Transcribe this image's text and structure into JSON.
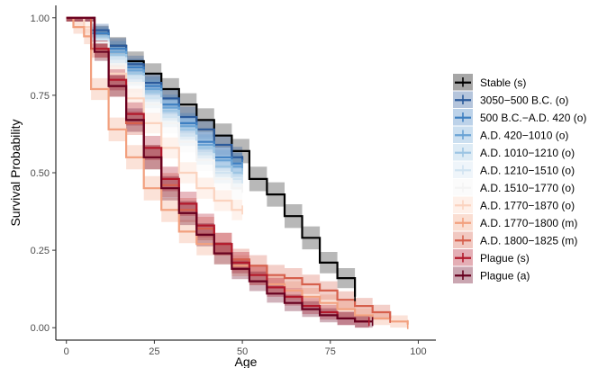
{
  "chart_data": {
    "type": "line",
    "subtype": "kaplan-meier-step",
    "title": "",
    "xlabel": "Age",
    "ylabel": "Survival Probability",
    "xlim": [
      -3,
      105
    ],
    "ylim": [
      -0.04,
      1.04
    ],
    "xticks": [
      0,
      25,
      50,
      75,
      100
    ],
    "yticks": [
      0,
      0.25,
      0.5,
      0.75,
      1
    ],
    "ytick_labels": [
      "0.00",
      "0.25",
      "0.50",
      "0.75",
      "1.00"
    ],
    "confidence_bands": true,
    "grid": false,
    "legend_position": "right",
    "series": [
      {
        "name": "Stable (s)",
        "color": "#000000",
        "x": [
          0,
          8,
          12,
          17,
          22,
          27,
          32,
          37,
          42,
          47,
          52,
          57,
          62,
          67,
          72,
          77,
          82
        ],
        "y": [
          1.0,
          0.95,
          0.91,
          0.86,
          0.82,
          0.77,
          0.72,
          0.67,
          0.62,
          0.57,
          0.48,
          0.43,
          0.36,
          0.29,
          0.21,
          0.16,
          0.1
        ],
        "end": 82
      },
      {
        "name": "3050−500 B.C. (o)",
        "color": "#2b5a9b",
        "x": [
          0,
          7,
          12,
          17,
          22,
          27,
          32,
          37,
          42,
          47,
          50
        ],
        "y": [
          1.0,
          0.96,
          0.91,
          0.85,
          0.79,
          0.74,
          0.68,
          0.64,
          0.59,
          0.55,
          0.54
        ],
        "end": 50
      },
      {
        "name": "500 B.C.−A.D. 420 (o)",
        "color": "#3e7fc1",
        "x": [
          0,
          7,
          12,
          17,
          22,
          27,
          32,
          37,
          42,
          47
        ],
        "y": [
          1.0,
          0.95,
          0.9,
          0.84,
          0.78,
          0.72,
          0.66,
          0.6,
          0.55,
          0.53
        ],
        "end": 50
      },
      {
        "name": "A.D. 420−1010 (o)",
        "color": "#6aa3d5",
        "x": [
          0,
          7,
          12,
          17,
          22,
          27,
          32,
          37,
          42,
          47
        ],
        "y": [
          1.0,
          0.94,
          0.89,
          0.83,
          0.77,
          0.71,
          0.65,
          0.59,
          0.54,
          0.52
        ],
        "end": 50
      },
      {
        "name": "A.D. 1010−1210 (o)",
        "color": "#9dc5e3",
        "x": [
          0,
          7,
          12,
          17,
          22,
          27,
          32,
          37,
          42,
          47
        ],
        "y": [
          1.0,
          0.94,
          0.88,
          0.82,
          0.76,
          0.7,
          0.64,
          0.58,
          0.52,
          0.5
        ],
        "end": 50
      },
      {
        "name": "A.D. 1210−1510 (o)",
        "color": "#d0e3f1",
        "x": [
          0,
          7,
          12,
          17,
          22,
          27,
          32,
          37,
          42,
          47
        ],
        "y": [
          1.0,
          0.93,
          0.87,
          0.81,
          0.74,
          0.68,
          0.62,
          0.56,
          0.5,
          0.48
        ],
        "end": 50
      },
      {
        "name": "A.D. 1510−1770 (o)",
        "color": "#f4f4f4",
        "x": [
          0,
          7,
          12,
          17,
          22,
          27,
          32,
          37,
          42,
          47
        ],
        "y": [
          1.0,
          0.92,
          0.85,
          0.79,
          0.72,
          0.66,
          0.6,
          0.54,
          0.48,
          0.45
        ],
        "end": 50
      },
      {
        "name": "A.D. 1770−1870 (o)",
        "color": "#fbd3bf",
        "x": [
          0,
          5,
          7,
          12,
          17,
          22,
          27,
          32,
          37,
          42,
          47
        ],
        "y": [
          1.0,
          0.97,
          0.89,
          0.82,
          0.74,
          0.66,
          0.58,
          0.5,
          0.45,
          0.41,
          0.38
        ],
        "end": 50
      },
      {
        "name": "A.D. 1770−1800 (m)",
        "color": "#f2a07e",
        "x": [
          0,
          2,
          5,
          7,
          12,
          17,
          22,
          27,
          32,
          37,
          42,
          47,
          52,
          57,
          62,
          67,
          72,
          77,
          82,
          87,
          92,
          97
        ],
        "y": [
          1.0,
          0.97,
          0.94,
          0.77,
          0.64,
          0.55,
          0.45,
          0.38,
          0.31,
          0.27,
          0.24,
          0.2,
          0.17,
          0.14,
          0.12,
          0.1,
          0.08,
          0.06,
          0.04,
          0.03,
          0.02,
          0.01
        ],
        "end": 97
      },
      {
        "name": "A.D. 1800−1825 (m)",
        "color": "#d6604d",
        "x": [
          0,
          7,
          12,
          17,
          22,
          27,
          32,
          37,
          42,
          47,
          52,
          57,
          62,
          67,
          72,
          77,
          82,
          87,
          92
        ],
        "y": [
          1.0,
          0.9,
          0.78,
          0.66,
          0.55,
          0.46,
          0.38,
          0.32,
          0.27,
          0.22,
          0.2,
          0.17,
          0.16,
          0.14,
          0.12,
          0.09,
          0.07,
          0.05,
          0.03
        ],
        "end": 92
      },
      {
        "name": "Plague (s)",
        "color": "#b2182b",
        "x": [
          0,
          8,
          12,
          17,
          22,
          27,
          32,
          37,
          42,
          47,
          52,
          57,
          62,
          67,
          72,
          77,
          82
        ],
        "y": [
          1.0,
          0.9,
          0.8,
          0.69,
          0.58,
          0.48,
          0.4,
          0.33,
          0.27,
          0.21,
          0.17,
          0.13,
          0.1,
          0.07,
          0.05,
          0.03,
          0.02
        ],
        "end": 86
      },
      {
        "name": "Plague (a)",
        "color": "#67001f",
        "x": [
          0,
          8,
          12,
          17,
          22,
          27,
          32,
          37,
          42,
          47,
          52,
          57,
          62,
          67,
          72,
          77,
          82
        ],
        "y": [
          1.0,
          0.89,
          0.78,
          0.67,
          0.55,
          0.45,
          0.37,
          0.3,
          0.24,
          0.19,
          0.15,
          0.11,
          0.08,
          0.06,
          0.04,
          0.03,
          0.02
        ],
        "end": 87
      }
    ]
  }
}
